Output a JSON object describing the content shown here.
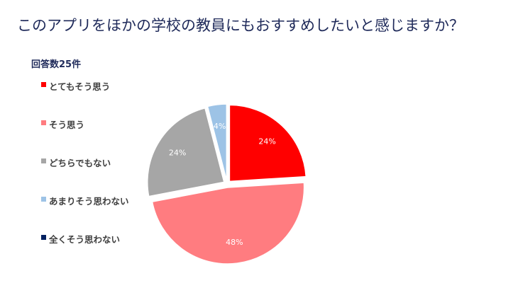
{
  "chart_data": {
    "type": "pie",
    "title": "このアプリをほかの学校の教員にもおすすめしたいと感じますか？",
    "subtitle": "回答数25件",
    "legend_position": "left",
    "categories": [
      "とてもそう思う",
      "そう思う",
      "どちらでもない",
      "あまりそう思わない",
      "全くそう思わない"
    ],
    "values": [
      24,
      48,
      24,
      4,
      0
    ],
    "value_labels": [
      "24%",
      "48%",
      "24%",
      "4%",
      ""
    ],
    "colors": [
      "#ff0000",
      "#ff7c80",
      "#a6a6a6",
      "#9dc3e6",
      "#002060"
    ]
  }
}
